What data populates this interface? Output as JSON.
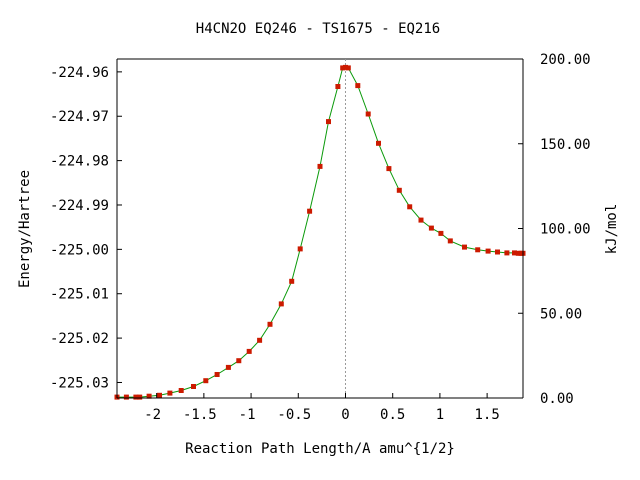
{
  "chart_data": {
    "type": "line",
    "title": "H4CN2O   EQ246 - TS1675 - EQ216",
    "xlabel": "Reaction Path Length/A amu^{1/2}",
    "ylabel": "Energy/Hartree",
    "y2label": "kJ/mol",
    "xlim": [
      -2.42,
      1.88
    ],
    "ylim": [
      -225.0335,
      -224.9571
    ],
    "y2lim": [
      0.0,
      200.0
    ],
    "x_ticks": [
      -2,
      -1.5,
      -1,
      -0.5,
      0,
      0.5,
      1,
      1.5
    ],
    "x_tick_labels": [
      "-2",
      "-1.5",
      "-1",
      "-0.5",
      "0",
      "0.5",
      "1",
      "1.5"
    ],
    "y_ticks": [
      -224.96,
      -224.97,
      -224.98,
      -224.99,
      -225.0,
      -225.01,
      -225.02,
      -225.03
    ],
    "y_tick_labels": [
      "-224.96",
      "-224.97",
      "-224.98",
      "-224.99",
      "-225.00",
      "-225.01",
      "-225.02",
      "-225.03"
    ],
    "y2_ticks": [
      0,
      50,
      100,
      150,
      200
    ],
    "y2_tick_labels": [
      "0.00",
      "50.00",
      "100.00",
      "150.00",
      "200.00"
    ],
    "ts_x": 0.0,
    "series": [
      {
        "line_color": "#0a9a0a",
        "marker_color": "#cc1a00",
        "x": [
          -2.42,
          -2.32,
          -2.22,
          -2.18,
          -2.08,
          -1.97,
          -1.86,
          -1.74,
          -1.61,
          -1.48,
          -1.36,
          -1.24,
          -1.13,
          -1.02,
          -0.91,
          -0.8,
          -0.68,
          -0.57,
          -0.48,
          -0.38,
          -0.27,
          -0.18,
          -0.08,
          -0.03,
          0.0,
          0.03,
          0.13,
          0.24,
          0.35,
          0.46,
          0.57,
          0.68,
          0.8,
          0.91,
          1.01,
          1.11,
          1.26,
          1.4,
          1.51,
          1.61,
          1.71,
          1.79,
          1.83,
          1.86,
          1.88
        ],
        "y": [
          -225.0333,
          -225.0333,
          -225.0333,
          -225.0333,
          -225.0331,
          -225.0329,
          -225.0324,
          -225.0318,
          -225.0309,
          -225.0296,
          -225.0282,
          -225.0266,
          -225.0251,
          -225.023,
          -225.0205,
          -225.0169,
          -225.0123,
          -225.0072,
          -224.9999,
          -224.9914,
          -224.9813,
          -224.9712,
          -224.9633,
          -224.9591,
          -224.959,
          -224.9591,
          -224.9631,
          -224.9695,
          -224.9761,
          -224.9818,
          -224.9867,
          -224.9904,
          -224.9934,
          -224.9952,
          -224.9964,
          -224.9981,
          -224.9995,
          -225.0001,
          -225.0004,
          -225.0006,
          -225.0008,
          -225.0008,
          -225.0009,
          -225.0009,
          -225.0009
        ]
      }
    ]
  }
}
